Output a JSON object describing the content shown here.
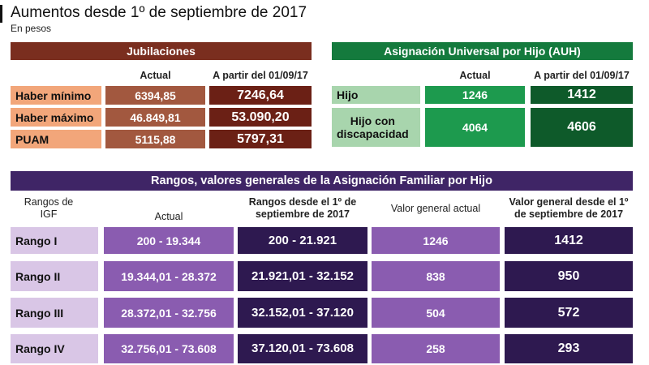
{
  "title": "Aumentos desde 1º de septiembre de 2017",
  "subtitle": "En pesos",
  "jubilaciones": {
    "header": "Jubilaciones",
    "col_actual": "Actual",
    "col_nuevo": "A partir del 01/09/17",
    "rows": [
      {
        "label": "Haber mínimo",
        "actual": "6394,85",
        "nuevo": "7246,64"
      },
      {
        "label": "Haber máximo",
        "actual": "46.849,81",
        "nuevo": "53.090,20"
      },
      {
        "label": "PUAM",
        "actual": "5115,88",
        "nuevo": "5797,31"
      }
    ]
  },
  "auh": {
    "header": "Asignación Universal por Hijo (AUH)",
    "col_actual": "Actual",
    "col_nuevo": "A partir del 01/09/17",
    "rows": [
      {
        "label": "Hijo",
        "actual": "1246",
        "nuevo": "1412"
      },
      {
        "label": "Hijo con discapacidad",
        "actual": "4064",
        "nuevo": "4606"
      }
    ]
  },
  "rangos": {
    "header": "Rangos, valores generales de la Asignación Familiar por Hijo",
    "col_rangos": "Rangos de IGF",
    "col_actual": "Actual",
    "col_rangos_nuevo": "Rangos desde el 1º de septiembre de 2017",
    "col_valor_actual": "Valor general actual",
    "col_valor_nuevo": "Valor general desde el 1º de septiembre de 2017",
    "rows": [
      {
        "label": "Rango I",
        "actual": "200 - 19.344",
        "nuevo": "200 - 21.921",
        "valor_actual": "1246",
        "valor_nuevo": "1412"
      },
      {
        "label": "Rango II",
        "actual": "19.344,01 - 28.372",
        "nuevo": "21.921,01 - 32.152",
        "valor_actual": "838",
        "valor_nuevo": "950"
      },
      {
        "label": "Rango III",
        "actual": "28.372,01 - 32.756",
        "nuevo": "32.152,01 - 37.120",
        "valor_actual": "504",
        "valor_nuevo": "572"
      },
      {
        "label": "Rango IV",
        "actual": "32.756,01 - 73.608",
        "nuevo": "37.120,01 - 73.608",
        "valor_actual": "258",
        "valor_nuevo": "293"
      }
    ]
  },
  "colors": {
    "jub_header": "#7a2e1f",
    "jub_label": "#f2a67a",
    "jub_actual": "#a2583f",
    "jub_nuevo": "#6b2015",
    "auh_header": "#147a3d",
    "auh_label": "#a8d5ad",
    "auh_actual": "#1d9a4e",
    "auh_nuevo": "#0e5a2a",
    "rg_header": "#3f2566",
    "rg_label": "#d9c6e6",
    "rg_actual": "#8a5cb0",
    "rg_nuevo": "#2e1950"
  }
}
